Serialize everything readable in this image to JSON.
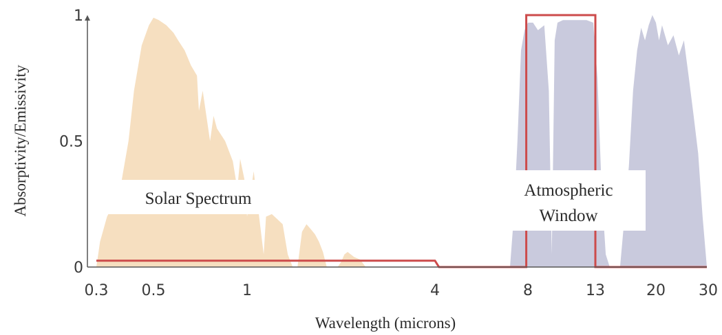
{
  "chart_data": {
    "type": "area",
    "title": "",
    "xlabel": "Wavelength (microns)",
    "ylabel": "Absorptivity/Emissivity",
    "x_scale": "log",
    "xlim": [
      0.3,
      30
    ],
    "ylim": [
      0,
      1
    ],
    "x_ticks": [
      {
        "value": 0.3,
        "label": "0.3"
      },
      {
        "value": 0.5,
        "label": "0.5"
      },
      {
        "value": 1,
        "label": "1"
      },
      {
        "value": 4,
        "label": "4"
      },
      {
        "value": 8,
        "label": "8"
      },
      {
        "value": 13,
        "label": "13"
      },
      {
        "value": 20,
        "label": "20"
      },
      {
        "value": 30,
        "label": "30"
      }
    ],
    "y_ticks": [
      {
        "value": 0,
        "label": "0"
      },
      {
        "value": 0.5,
        "label": "0.5"
      },
      {
        "value": 1,
        "label": "1"
      }
    ],
    "grid": false,
    "legend": "none",
    "series": [
      {
        "kind": "solar-spectrum",
        "color": "#f6dfc0",
        "x": [
          0.3,
          0.31,
          0.33,
          0.35,
          0.37,
          0.38,
          0.4,
          0.42,
          0.45,
          0.48,
          0.5,
          0.52,
          0.55,
          0.58,
          0.6,
          0.63,
          0.66,
          0.69,
          0.7,
          0.72,
          0.76,
          0.78,
          0.8,
          0.85,
          0.9,
          0.93,
          0.95,
          0.98,
          1.0,
          1.05,
          1.1,
          1.13,
          1.15,
          1.2,
          1.25,
          1.3,
          1.35,
          1.4,
          1.45,
          1.5,
          1.55,
          1.6,
          1.65,
          1.7,
          1.75,
          1.8,
          1.85,
          1.9,
          1.95,
          2.0,
          2.05,
          2.1,
          2.2,
          2.3,
          2.4,
          2.5,
          2.6,
          2.7,
          2.8,
          3.0,
          3.2
        ],
        "y": [
          0.0,
          0.1,
          0.2,
          0.25,
          0.3,
          0.37,
          0.5,
          0.7,
          0.88,
          0.96,
          0.99,
          0.98,
          0.96,
          0.93,
          0.9,
          0.86,
          0.8,
          0.76,
          0.62,
          0.7,
          0.5,
          0.6,
          0.55,
          0.5,
          0.42,
          0.31,
          0.43,
          0.35,
          0.2,
          0.38,
          0.17,
          0.05,
          0.2,
          0.21,
          0.19,
          0.17,
          0.05,
          0.0,
          0.0,
          0.14,
          0.17,
          0.15,
          0.13,
          0.1,
          0.06,
          0.0,
          0.0,
          0.0,
          0.0,
          0.02,
          0.05,
          0.06,
          0.04,
          0.03,
          0.0,
          0.0,
          0.0,
          0.0,
          0.0,
          0.0,
          0.0
        ]
      },
      {
        "kind": "thermal-emission",
        "color": "#c9cadd",
        "x": [
          7.0,
          7.2,
          7.4,
          7.6,
          7.8,
          8.0,
          8.3,
          8.6,
          9.0,
          9.3,
          9.5,
          9.7,
          9.9,
          10.3,
          10.8,
          11.5,
          12.2,
          12.8,
          13.2,
          13.6,
          14.0,
          14.4,
          15.0,
          15.5,
          16.0,
          16.5,
          17.0,
          17.5,
          18.0,
          18.5,
          19.0,
          19.5,
          20.0,
          20.5,
          21.0,
          22.0,
          23.0,
          24.0,
          25.0,
          26.0,
          27.0,
          28.0,
          29.0,
          30.0
        ],
        "y": [
          0.0,
          0.2,
          0.5,
          0.86,
          0.94,
          0.97,
          0.97,
          0.94,
          0.96,
          0.7,
          0.05,
          0.9,
          0.97,
          0.98,
          0.98,
          0.98,
          0.98,
          0.97,
          0.75,
          0.3,
          0.05,
          0.0,
          0.0,
          0.0,
          0.2,
          0.4,
          0.7,
          0.86,
          0.95,
          0.9,
          0.96,
          1.0,
          0.97,
          0.9,
          0.96,
          0.88,
          0.92,
          0.84,
          0.9,
          0.75,
          0.6,
          0.45,
          0.2,
          0.0
        ]
      },
      {
        "kind": "emissivity-line",
        "color": "#cc4b4b",
        "x": [
          0.3,
          4.0,
          4.12,
          7.9,
          7.9,
          13.0,
          13.0,
          30.0
        ],
        "y": [
          0.025,
          0.025,
          0.0,
          0.0,
          1.0,
          1.0,
          0.0,
          0.0
        ]
      }
    ],
    "annotations": [
      {
        "lines": [
          "Solar Spectrum"
        ]
      },
      {
        "lines": [
          "Atmospheric",
          "Window"
        ]
      }
    ]
  }
}
